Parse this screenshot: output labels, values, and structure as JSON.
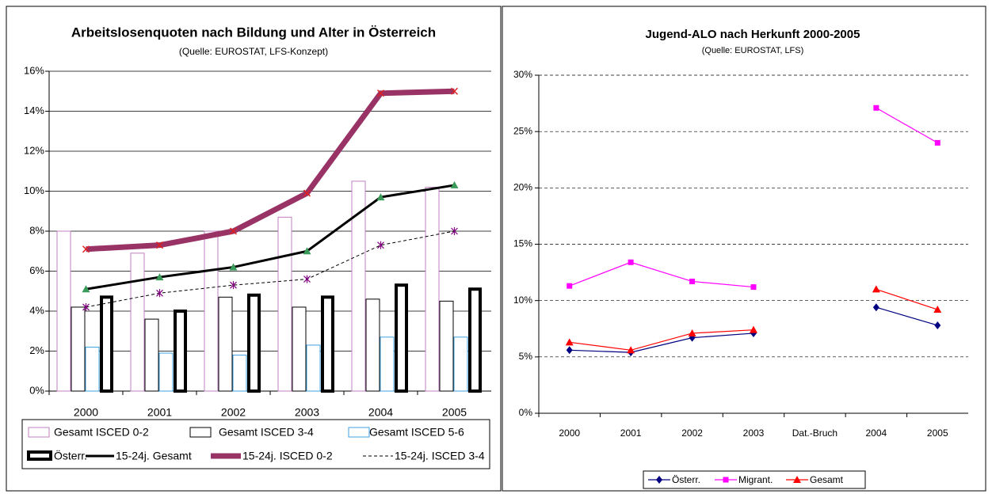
{
  "chart_data": [
    {
      "type": "combo",
      "title": "Arbeitslosenquoten nach Bildung und Alter in Österreich",
      "subtitle": "(Quelle: EUROSTAT, LFS-Konzept)",
      "categories": [
        "2000",
        "2001",
        "2002",
        "2003",
        "2004",
        "2005"
      ],
      "ylim": [
        0,
        16
      ],
      "yticks": [
        {
          "value": 0,
          "label": "0%"
        },
        {
          "value": 2,
          "label": "2%"
        },
        {
          "value": 4,
          "label": "4%"
        },
        {
          "value": 6,
          "label": "6%"
        },
        {
          "value": 8,
          "label": "8%"
        },
        {
          "value": 10,
          "label": "10%"
        },
        {
          "value": 12,
          "label": "12%"
        },
        {
          "value": 14,
          "label": "14%"
        },
        {
          "value": 16,
          "label": "16%"
        }
      ],
      "grid": true,
      "series": [
        {
          "name": "Gesamt ISCED 0-2",
          "type": "bar",
          "color": "#c080c0",
          "values": [
            8.0,
            6.9,
            8.0,
            8.7,
            10.5,
            10.2
          ]
        },
        {
          "name": "Gesamt ISCED 3-4",
          "type": "bar",
          "color": "#000000",
          "values": [
            4.2,
            3.6,
            4.7,
            4.2,
            4.6,
            4.5
          ]
        },
        {
          "name": "Gesamt ISCED 5-6",
          "type": "bar",
          "color": "#40a0e0",
          "values": [
            2.2,
            1.9,
            1.8,
            2.3,
            2.7,
            2.7
          ]
        },
        {
          "name": "Österr.",
          "type": "bar",
          "color": "#000000",
          "thick": true,
          "values": [
            4.7,
            4.0,
            4.8,
            4.7,
            5.3,
            5.1
          ]
        },
        {
          "name": "15-24j. Gesamt",
          "type": "line",
          "color": "#000000",
          "marker": "triangle",
          "marker_color": "#3a9a5a",
          "values": [
            5.1,
            5.7,
            6.2,
            7.0,
            9.7,
            10.3
          ]
        },
        {
          "name": "15-24j. ISCED 0-2",
          "type": "line",
          "color": "#993366",
          "thick": true,
          "marker": "x",
          "marker_color": "#e02020",
          "values": [
            7.1,
            7.3,
            8.0,
            9.9,
            14.9,
            15.0
          ]
        },
        {
          "name": "15-24j. ISCED 3-4",
          "type": "line",
          "color": "#000000",
          "dashed": true,
          "marker": "star",
          "marker_color": "#800080",
          "values": [
            4.2,
            4.9,
            5.3,
            5.6,
            7.3,
            8.0
          ]
        }
      ]
    },
    {
      "type": "line",
      "title": "Jugend-ALO nach Herkunft 2000-2005",
      "subtitle": "(Quelle: EUROSTAT, LFS)",
      "categories": [
        "2000",
        "2001",
        "2002",
        "2003",
        "Dat.-Bruch",
        "2004",
        "2005"
      ],
      "ylim": [
        0,
        30
      ],
      "yticks": [
        {
          "value": 0,
          "label": "0%"
        },
        {
          "value": 5,
          "label": "5%"
        },
        {
          "value": 10,
          "label": "10%"
        },
        {
          "value": 15,
          "label": "15%"
        },
        {
          "value": 20,
          "label": "20%"
        },
        {
          "value": 25,
          "label": "25%"
        },
        {
          "value": 30,
          "label": "30%"
        }
      ],
      "grid": true,
      "grid_dashed": true,
      "series": [
        {
          "name": "Österr.",
          "type": "line",
          "color": "#000080",
          "marker": "diamond",
          "marker_color": "#000080",
          "values": [
            5.6,
            5.4,
            6.7,
            7.1,
            null,
            9.4,
            7.8
          ]
        },
        {
          "name": "Migrant.",
          "type": "line",
          "color": "#ff00ff",
          "marker": "square",
          "marker_color": "#ff00ff",
          "values": [
            11.3,
            13.4,
            11.7,
            11.2,
            null,
            27.1,
            24.0
          ]
        },
        {
          "name": "Gesamt",
          "type": "line",
          "color": "#ff0000",
          "marker": "triangle",
          "marker_color": "#ff0000",
          "values": [
            6.3,
            5.6,
            7.1,
            7.4,
            null,
            11.0,
            9.2
          ]
        }
      ]
    }
  ]
}
